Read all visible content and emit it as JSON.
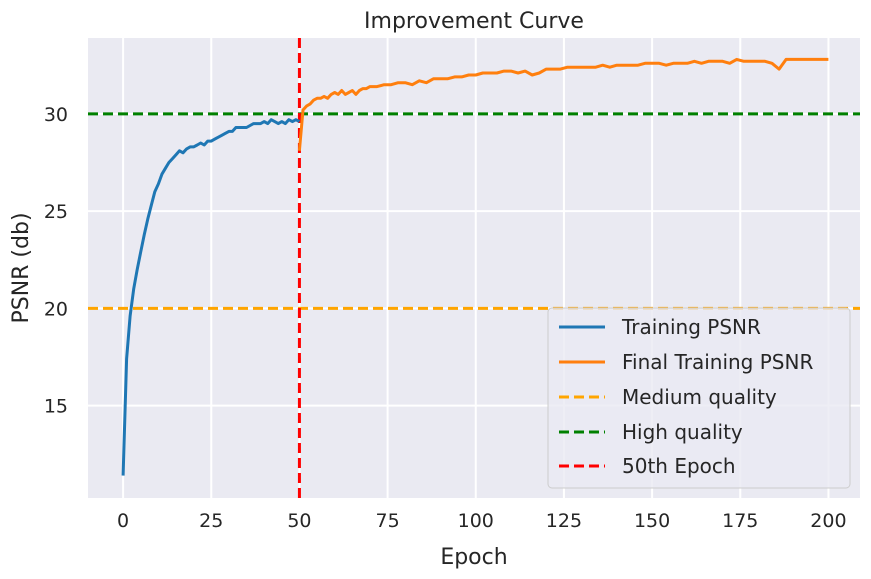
{
  "chart_data": {
    "type": "line",
    "title": "Improvement Curve",
    "xlabel": "Epoch",
    "ylabel": "PSNR (db)",
    "xlim": [
      -9.95,
      208.95
    ],
    "ylim": [
      10.25,
      33.9
    ],
    "x_ticks": [
      0,
      25,
      50,
      75,
      100,
      125,
      150,
      175,
      200
    ],
    "y_ticks": [
      15,
      20,
      25,
      30
    ],
    "grid": true,
    "legend_position": "lower right",
    "colors": {
      "background": "#eaeaf2",
      "grid": "#ffffff",
      "training": "#1f77b4",
      "final": "#ff7f0e",
      "medium": "#ffa500",
      "high": "#008000",
      "epoch": "#ff0000"
    },
    "series": [
      {
        "name": "Training PSNR",
        "x": [
          0,
          1,
          2,
          3,
          4,
          5,
          6,
          7,
          8,
          9,
          10,
          11,
          12,
          13,
          14,
          15,
          16,
          17,
          18,
          19,
          20,
          21,
          22,
          23,
          24,
          25,
          26,
          27,
          28,
          29,
          30,
          31,
          32,
          33,
          34,
          35,
          36,
          37,
          38,
          39,
          40,
          41,
          42,
          43,
          44,
          45,
          46,
          47,
          48,
          49,
          50
        ],
        "y": [
          11.4,
          17.4,
          19.6,
          21.0,
          22.0,
          22.9,
          23.8,
          24.6,
          25.3,
          26.0,
          26.4,
          26.9,
          27.2,
          27.5,
          27.7,
          27.9,
          28.1,
          28.0,
          28.2,
          28.3,
          28.3,
          28.4,
          28.5,
          28.4,
          28.6,
          28.6,
          28.7,
          28.8,
          28.9,
          29.0,
          29.1,
          29.1,
          29.3,
          29.3,
          29.3,
          29.3,
          29.4,
          29.5,
          29.5,
          29.5,
          29.6,
          29.5,
          29.7,
          29.6,
          29.5,
          29.6,
          29.5,
          29.7,
          29.6,
          29.7,
          29.6
        ]
      },
      {
        "name": "Final Training PSNR",
        "x": [
          50,
          51,
          52,
          53,
          54,
          55,
          56,
          57,
          58,
          59,
          60,
          61,
          62,
          63,
          64,
          65,
          66,
          67,
          68,
          69,
          70,
          72,
          74,
          76,
          78,
          80,
          82,
          84,
          86,
          88,
          90,
          92,
          94,
          96,
          98,
          100,
          102,
          104,
          106,
          108,
          110,
          112,
          114,
          116,
          118,
          120,
          122,
          124,
          126,
          128,
          130,
          132,
          134,
          136,
          138,
          140,
          142,
          144,
          146,
          148,
          150,
          152,
          154,
          156,
          158,
          160,
          162,
          164,
          166,
          168,
          170,
          172,
          174,
          176,
          178,
          180,
          182,
          184,
          186,
          188,
          190,
          192,
          194,
          196,
          198,
          200
        ],
        "y": [
          28.1,
          30.2,
          30.4,
          30.5,
          30.7,
          30.8,
          30.8,
          30.9,
          30.8,
          31.0,
          31.1,
          31.0,
          31.2,
          31.0,
          31.1,
          31.2,
          31.0,
          31.2,
          31.3,
          31.3,
          31.4,
          31.4,
          31.5,
          31.5,
          31.6,
          31.6,
          31.5,
          31.7,
          31.6,
          31.8,
          31.8,
          31.8,
          31.9,
          31.9,
          32.0,
          32.0,
          32.1,
          32.1,
          32.1,
          32.2,
          32.2,
          32.1,
          32.2,
          32.0,
          32.1,
          32.3,
          32.3,
          32.3,
          32.4,
          32.4,
          32.4,
          32.4,
          32.4,
          32.5,
          32.4,
          32.5,
          32.5,
          32.5,
          32.5,
          32.6,
          32.6,
          32.6,
          32.5,
          32.6,
          32.6,
          32.6,
          32.7,
          32.6,
          32.7,
          32.7,
          32.7,
          32.6,
          32.8,
          32.7,
          32.7,
          32.7,
          32.7,
          32.6,
          32.3,
          32.8,
          32.8,
          32.8,
          32.8,
          32.8,
          32.8,
          32.8
        ]
      }
    ],
    "reference_lines": [
      {
        "name": "Medium quality",
        "orientation": "horizontal",
        "value": 20
      },
      {
        "name": "High quality",
        "orientation": "horizontal",
        "value": 30
      },
      {
        "name": "50th Epoch",
        "orientation": "vertical",
        "value": 50
      }
    ]
  }
}
